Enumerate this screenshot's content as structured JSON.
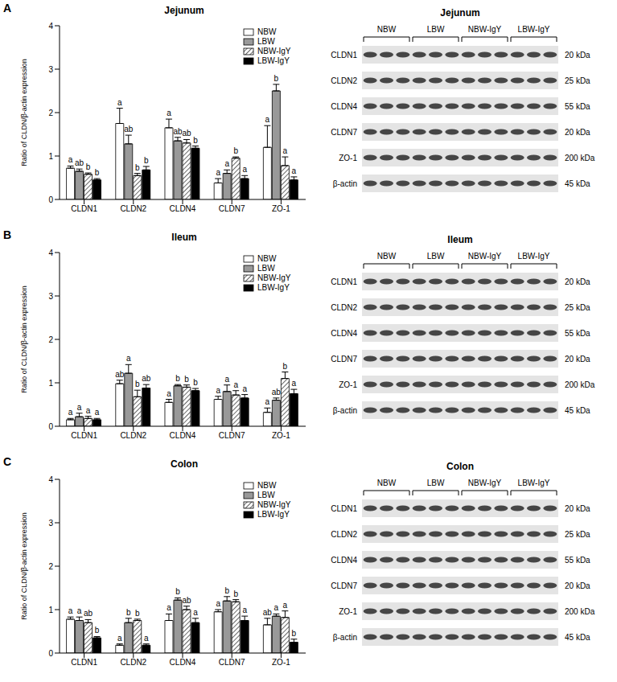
{
  "panel_letters": [
    "A",
    "B",
    "C"
  ],
  "chart_data": [
    {
      "type": "bar",
      "title": "Jejunum",
      "y_label": "Ratio of CLDN/β-actin expression",
      "categories": [
        "CLDN1",
        "CLDN2",
        "CLDN4",
        "CLDN7",
        "ZO-1"
      ],
      "ylim": [
        0,
        4
      ],
      "yticks": [
        0,
        1,
        2,
        3,
        4
      ],
      "legend": "upper right",
      "series": [
        {
          "name": "NBW",
          "color": "#ffffff",
          "values": [
            0.72,
            1.75,
            1.65,
            0.38,
            1.2
          ],
          "errors": [
            0.05,
            0.35,
            0.2,
            0.1,
            0.5
          ],
          "letters": [
            "a",
            "a",
            "a",
            "a",
            "a"
          ]
        },
        {
          "name": "LBW",
          "color": "#999999",
          "values": [
            0.65,
            1.28,
            1.35,
            0.6,
            2.5
          ],
          "errors": [
            0.05,
            0.2,
            0.08,
            0.08,
            0.15
          ],
          "letters": [
            "ab",
            "ab",
            "ab",
            "a",
            "b"
          ]
        },
        {
          "name": "NBW-IgY",
          "color": "#ffffff",
          "values": [
            0.58,
            0.55,
            1.3,
            0.95,
            0.78
          ],
          "errors": [
            0.03,
            0.05,
            0.08,
            0.03,
            0.2
          ],
          "letters": [
            "b",
            "b",
            "ab",
            "b",
            "a"
          ]
        },
        {
          "name": "LBW-IgY",
          "color": "#000000",
          "values": [
            0.45,
            0.68,
            1.18,
            0.48,
            0.45
          ],
          "errors": [
            0.03,
            0.08,
            0.05,
            0.07,
            0.07
          ],
          "letters": [
            "b",
            "b",
            "b",
            "a",
            "a"
          ]
        }
      ]
    },
    {
      "type": "bar",
      "title": "Ileum",
      "y_label": "Ratio of CLDN/β-actin expression",
      "categories": [
        "CLDN1",
        "CLDN2",
        "CLDN4",
        "CLDN7",
        "ZO-1"
      ],
      "ylim": [
        0,
        4
      ],
      "yticks": [
        0,
        1,
        2,
        3,
        4
      ],
      "legend": "upper right",
      "series": [
        {
          "name": "NBW",
          "color": "#ffffff",
          "values": [
            0.15,
            0.98,
            0.55,
            0.62,
            0.32
          ],
          "errors": [
            0.03,
            0.08,
            0.07,
            0.07,
            0.1
          ],
          "letters": [
            "a",
            "ab",
            "a",
            "a",
            "a"
          ]
        },
        {
          "name": "LBW",
          "color": "#999999",
          "values": [
            0.22,
            1.22,
            0.93,
            0.8,
            0.6
          ],
          "errors": [
            0.08,
            0.2,
            0.03,
            0.15,
            0.05
          ],
          "letters": [
            "a",
            "a",
            "b",
            "a",
            "ab"
          ]
        },
        {
          "name": "NBW-IgY",
          "color": "#ffffff",
          "values": [
            0.18,
            0.68,
            0.9,
            0.72,
            1.1
          ],
          "errors": [
            0.05,
            0.15,
            0.05,
            0.1,
            0.15
          ],
          "letters": [
            "a",
            "b",
            "b",
            "a",
            "b"
          ]
        },
        {
          "name": "LBW-IgY",
          "color": "#000000",
          "values": [
            0.15,
            0.88,
            0.82,
            0.65,
            0.75
          ],
          "errors": [
            0.03,
            0.08,
            0.05,
            0.08,
            0.1
          ],
          "letters": [
            "a",
            "ab",
            "b",
            "a",
            "a"
          ]
        }
      ]
    },
    {
      "type": "bar",
      "title": "Colon",
      "y_label": "Ratio of CLDN/β-actin expression",
      "categories": [
        "CLDN1",
        "CLDN2",
        "CLDN4",
        "CLDN7",
        "ZO-1"
      ],
      "ylim": [
        0,
        4
      ],
      "yticks": [
        0,
        1,
        2,
        3,
        4
      ],
      "legend": "upper right",
      "series": [
        {
          "name": "NBW",
          "color": "#ffffff",
          "values": [
            0.78,
            0.18,
            0.75,
            0.95,
            0.65
          ],
          "errors": [
            0.05,
            0.03,
            0.15,
            0.05,
            0.15
          ],
          "letters": [
            "a",
            "a",
            "a",
            "a",
            "ab"
          ]
        },
        {
          "name": "LBW",
          "color": "#999999",
          "values": [
            0.75,
            0.7,
            1.22,
            1.2,
            0.85
          ],
          "errors": [
            0.08,
            0.1,
            0.05,
            0.1,
            0.05
          ],
          "letters": [
            "a",
            "b",
            "b",
            "b",
            "a"
          ]
        },
        {
          "name": "NBW-IgY",
          "color": "#ffffff",
          "values": [
            0.7,
            0.75,
            1.0,
            1.18,
            0.82
          ],
          "errors": [
            0.07,
            0.03,
            0.08,
            0.05,
            0.15
          ],
          "letters": [
            "ab",
            "b",
            "ab",
            "b",
            "a"
          ]
        },
        {
          "name": "LBW-IgY",
          "color": "#000000",
          "values": [
            0.35,
            0.18,
            0.7,
            0.75,
            0.25
          ],
          "errors": [
            0.03,
            0.03,
            0.1,
            0.1,
            0.07
          ],
          "letters": [
            "b",
            "a",
            "a",
            "a",
            "b"
          ]
        }
      ]
    }
  ],
  "blots": [
    {
      "title": "Jejunum",
      "groups": [
        "NBW",
        "LBW",
        "NBW-IgY",
        "LBW-IgY"
      ],
      "rows": [
        {
          "label": "CLDN1",
          "size": "20 kDa"
        },
        {
          "label": "CLDN2",
          "size": "25 kDa"
        },
        {
          "label": "CLDN4",
          "size": "55 kDa"
        },
        {
          "label": "CLDN7",
          "size": "20 kDa"
        },
        {
          "label": "ZO-1",
          "size": "200 kDa"
        },
        {
          "label": "β-actin",
          "size": "45 kDa"
        }
      ]
    },
    {
      "title": "Ileum",
      "groups": [
        "NBW",
        "LBW",
        "NBW-IgY",
        "LBW-IgY"
      ],
      "rows": [
        {
          "label": "CLDN1",
          "size": "20 kDa"
        },
        {
          "label": "CLDN2",
          "size": "25 kDa"
        },
        {
          "label": "CLDN4",
          "size": "55 kDa"
        },
        {
          "label": "CLDN7",
          "size": "20 kDa"
        },
        {
          "label": "ZO-1",
          "size": "200 kDa"
        },
        {
          "label": "β-actin",
          "size": "45 kDa"
        }
      ]
    },
    {
      "title": "Colon",
      "groups": [
        "NBW",
        "LBW",
        "NBW-IgY",
        "LBW-IgY"
      ],
      "rows": [
        {
          "label": "CLDN1",
          "size": "20 kDa"
        },
        {
          "label": "CLDN2",
          "size": "25 kDa"
        },
        {
          "label": "CLDN4",
          "size": "55 kDa"
        },
        {
          "label": "CLDN7",
          "size": "20 kDa"
        },
        {
          "label": "ZO-1",
          "size": "200 kDa"
        },
        {
          "label": "β-actin",
          "size": "45 kDa"
        }
      ]
    }
  ]
}
